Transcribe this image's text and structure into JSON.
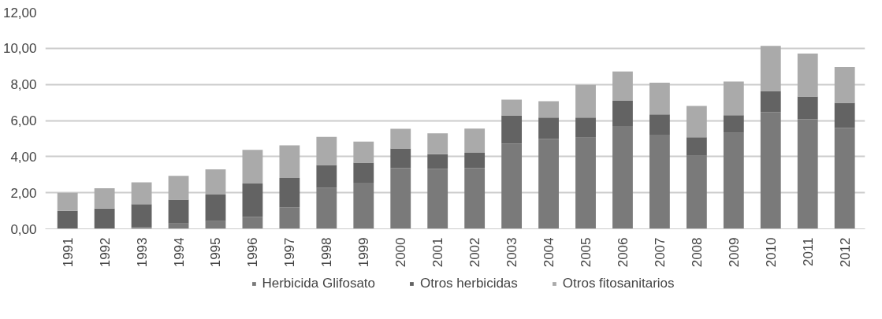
{
  "chart_data": {
    "type": "bar",
    "stacked": true,
    "categories": [
      "1991",
      "1992",
      "1993",
      "1994",
      "1995",
      "1996",
      "1997",
      "1998",
      "1999",
      "2000",
      "2001",
      "2002",
      "2003",
      "2004",
      "2005",
      "2006",
      "2007",
      "2008",
      "2009",
      "2010",
      "2011",
      "2012"
    ],
    "series": [
      {
        "name": "Herbicida Glifosato",
        "color": "#7a7a7a",
        "values": [
          0,
          0,
          0.1,
          0.3,
          0.43,
          0.66,
          1.19,
          2.28,
          2.55,
          3.36,
          3.33,
          3.36,
          4.71,
          4.97,
          5.05,
          5.69,
          5.21,
          4.05,
          5.31,
          6.47,
          6.07,
          5.59
        ]
      },
      {
        "name": "Otros herbicidas",
        "color": "#636363",
        "values": [
          0.99,
          1.12,
          1.26,
          1.32,
          1.47,
          1.85,
          1.62,
          1.26,
          1.12,
          1.09,
          0.81,
          0.85,
          1.57,
          1.19,
          1.11,
          1.4,
          1.13,
          1.02,
          0.98,
          1.17,
          1.26,
          1.39
        ]
      },
      {
        "name": "Otros fitosanitarios",
        "color": "#aaaaaa",
        "values": [
          1.01,
          1.13,
          1.22,
          1.32,
          1.4,
          1.87,
          1.82,
          1.56,
          1.16,
          1.09,
          1.15,
          1.34,
          0.88,
          0.91,
          1.81,
          1.63,
          1.76,
          1.74,
          1.87,
          2.5,
          2.38,
          1.99
        ]
      }
    ],
    "ylim": [
      0,
      12
    ],
    "yticks": [
      {
        "value": 0,
        "label": "0,00"
      },
      {
        "value": 2,
        "label": "2,00"
      },
      {
        "value": 4,
        "label": "4,00"
      },
      {
        "value": 6,
        "label": "6,00"
      },
      {
        "value": 8,
        "label": "8,00"
      },
      {
        "value": 10,
        "label": "10,00"
      },
      {
        "value": 12,
        "label": "12,00"
      }
    ],
    "grid": "y",
    "legend": "bottom"
  }
}
